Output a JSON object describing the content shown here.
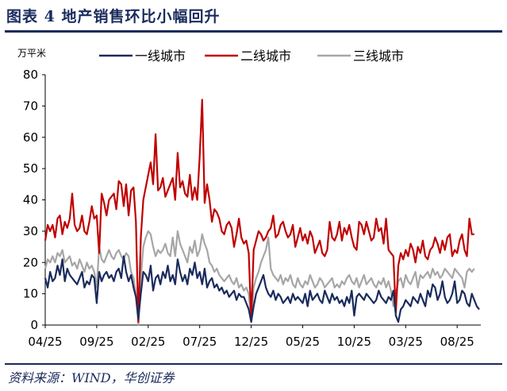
{
  "header": {
    "title": "图表 4   地产销售环比小幅回升"
  },
  "footer": {
    "source": "资料来源：WIND，华创证券"
  },
  "chart_data": {
    "type": "line",
    "ylabel": "万平米",
    "ylim": [
      0,
      80
    ],
    "yticks": [
      0,
      10,
      20,
      30,
      40,
      50,
      60,
      70,
      80
    ],
    "xtick_labels": [
      "04/25",
      "09/25",
      "02/25",
      "07/25",
      "12/25",
      "05/25",
      "10/25",
      "03/25",
      "08/25"
    ],
    "xtick_weeks": [
      0,
      21,
      42,
      63,
      84,
      105,
      126,
      147,
      168
    ],
    "x_unit": "week index",
    "grid": false,
    "legend_position": "top",
    "series": [
      {
        "name": "一线城市",
        "color": "#1a2b5c",
        "values": [
          15,
          12,
          17,
          14,
          15,
          19,
          16,
          21,
          14,
          18,
          16,
          15,
          14,
          13,
          15,
          17,
          12,
          14,
          13,
          16,
          15,
          7,
          17,
          14,
          16,
          17,
          15,
          16,
          14,
          17,
          18,
          15,
          22,
          17,
          14,
          16,
          12,
          9,
          2,
          10,
          17,
          16,
          14,
          19,
          11,
          15,
          16,
          13,
          17,
          15,
          19,
          14,
          16,
          13,
          21,
          17,
          14,
          16,
          13,
          18,
          16,
          20,
          15,
          17,
          13,
          18,
          12,
          14,
          15,
          12,
          13,
          11,
          12,
          10,
          11,
          9,
          10,
          11,
          8,
          10,
          9,
          9,
          7,
          5,
          1,
          6,
          10,
          12,
          14,
          16,
          12,
          10,
          9,
          11,
          8,
          10,
          9,
          7,
          8,
          9,
          7,
          10,
          8,
          9,
          8,
          7,
          10,
          6,
          11,
          8,
          9,
          10,
          8,
          7,
          11,
          9,
          7,
          10,
          8,
          9,
          7,
          8,
          6,
          9,
          7,
          11,
          3,
          9,
          10,
          9,
          8,
          10,
          9,
          8,
          7,
          8,
          11,
          9,
          8,
          7,
          9,
          8,
          11,
          3,
          1,
          5,
          6,
          8,
          7,
          6,
          9,
          8,
          7,
          10,
          8,
          6,
          11,
          9,
          13,
          12,
          8,
          10,
          14,
          9,
          7,
          8,
          10,
          14,
          7,
          8,
          11,
          10,
          7,
          6,
          10,
          8,
          6,
          5
        ]
      },
      {
        "name": "二线城市",
        "color": "#c00000",
        "values": [
          27,
          32,
          30,
          32,
          28,
          34,
          35,
          29,
          33,
          31,
          34,
          42,
          32,
          30,
          31,
          35,
          30,
          29,
          33,
          38,
          34,
          35,
          23,
          42,
          39,
          35,
          40,
          41,
          42,
          37,
          46,
          45,
          38,
          45,
          35,
          43,
          44,
          33,
          1,
          28,
          40,
          44,
          48,
          52,
          45,
          61,
          43,
          44,
          47,
          41,
          43,
          45,
          47,
          40,
          55,
          44,
          46,
          42,
          41,
          48,
          40,
          44,
          40,
          54,
          72,
          39,
          45,
          40,
          33,
          37,
          36,
          34,
          30,
          29,
          32,
          33,
          31,
          25,
          29,
          34,
          28,
          26,
          27,
          23,
          2,
          24,
          27,
          30,
          29,
          27,
          28,
          30,
          31,
          35,
          28,
          29,
          32,
          33,
          30,
          28,
          29,
          32,
          25,
          28,
          31,
          27,
          29,
          26,
          30,
          28,
          23,
          25,
          27,
          23,
          22,
          24,
          33,
          28,
          27,
          29,
          33,
          27,
          31,
          29,
          32,
          28,
          25,
          24,
          33,
          32,
          29,
          33,
          30,
          27,
          28,
          34,
          30,
          31,
          26,
          34,
          24,
          23,
          22,
          4,
          19,
          23,
          21,
          24,
          22,
          26,
          24,
          20,
          25,
          23,
          27,
          22,
          21,
          24,
          25,
          28,
          26,
          23,
          27,
          24,
          28,
          29,
          22,
          24,
          23,
          27,
          29,
          24,
          22,
          34,
          29,
          29
        ]
      },
      {
        "name": "三线城市",
        "color": "#a6a6a6",
        "values": [
          18,
          21,
          20,
          22,
          20,
          23,
          22,
          24,
          20,
          21,
          22,
          19,
          20,
          18,
          21,
          19,
          17,
          20,
          18,
          19,
          17,
          12,
          25,
          21,
          20,
          22,
          24,
          22,
          21,
          23,
          24,
          22,
          21,
          23,
          22,
          17,
          15,
          10,
          0,
          15,
          25,
          28,
          30,
          29,
          25,
          22,
          24,
          23,
          24,
          26,
          23,
          22,
          28,
          22,
          30,
          26,
          24,
          22,
          20,
          25,
          23,
          27,
          22,
          24,
          29,
          26,
          24,
          20,
          19,
          17,
          18,
          16,
          15,
          14,
          15,
          16,
          14,
          13,
          15,
          12,
          13,
          11,
          12,
          10,
          1,
          12,
          15,
          17,
          20,
          22,
          24,
          28,
          18,
          16,
          15,
          14,
          16,
          13,
          15,
          14,
          16,
          13,
          12,
          15,
          13,
          12,
          14,
          13,
          16,
          14,
          12,
          13,
          15,
          14,
          12,
          13,
          14,
          15,
          12,
          13,
          12,
          14,
          13,
          15,
          16,
          14,
          13,
          15,
          12,
          14,
          16,
          13,
          14,
          15,
          13,
          12,
          14,
          13,
          15,
          12,
          14,
          11,
          6,
          10,
          14,
          15,
          12,
          16,
          14,
          13,
          15,
          17,
          12,
          16,
          15,
          16,
          17,
          15,
          18,
          16,
          17,
          15,
          16,
          18,
          17,
          16,
          15,
          18,
          17,
          16,
          15,
          12,
          17,
          18,
          17,
          18
        ]
      }
    ]
  }
}
